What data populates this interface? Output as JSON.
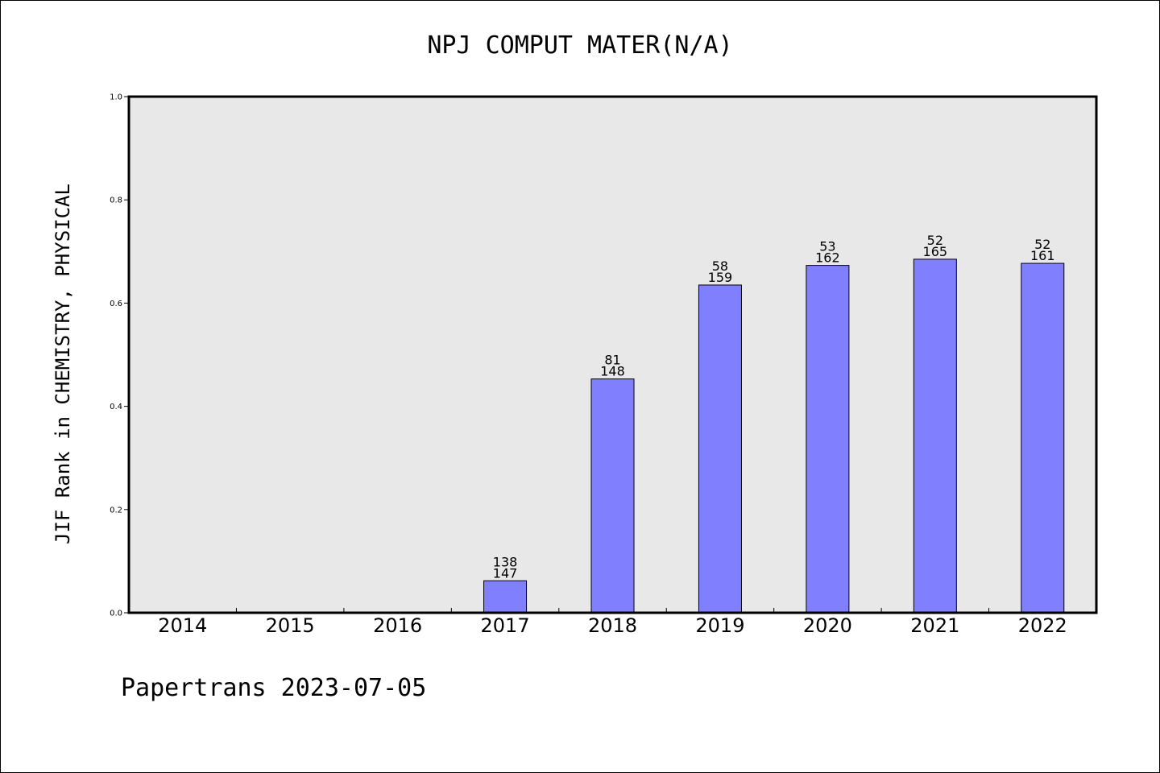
{
  "chart_data": {
    "type": "bar",
    "title": "NPJ COMPUT MATER(N/A)",
    "xlabel": "",
    "ylabel": "JIF Rank in CHEMISTRY, PHYSICAL",
    "ylim": [
      0,
      1.0
    ],
    "yticks": [
      "0.0",
      "0.2",
      "0.4",
      "0.6",
      "0.8",
      "1.0"
    ],
    "categories": [
      "2014",
      "2015",
      "2016",
      "2017",
      "2018",
      "2019",
      "2020",
      "2021",
      "2022"
    ],
    "values": [
      null,
      null,
      null,
      0.062,
      0.453,
      0.635,
      0.673,
      0.685,
      0.677
    ],
    "labels": [
      null,
      null,
      null,
      [
        "138",
        "147"
      ],
      [
        "81",
        "148"
      ],
      [
        "58",
        "159"
      ],
      [
        "53",
        "162"
      ],
      [
        "52",
        "165"
      ],
      [
        "52",
        "161"
      ]
    ],
    "grid": false,
    "bar_color": "#8080ff",
    "plot_background": "#e8e8e8"
  },
  "footer": "Papertrans 2023-07-05"
}
